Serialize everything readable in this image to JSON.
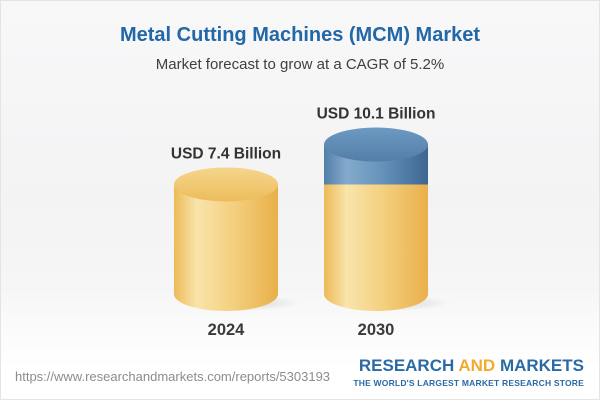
{
  "page": {
    "title": "Metal Cutting Machines (MCM) Market",
    "subtitle": "Market forecast to grow at a CAGR of 5.2%",
    "title_color": "#2268a8",
    "subtitle_color": "#3f3f3f"
  },
  "chart_data": {
    "type": "bar",
    "variant": "3d-cylinder",
    "title": "Metal Cutting Machines (MCM) Market",
    "subtitle": "Market forecast to grow at a CAGR of 5.2%",
    "cagr_percent": 5.2,
    "unit": "USD Billion",
    "categories": [
      "2024",
      "2030"
    ],
    "values": [
      7.4,
      10.1
    ],
    "value_labels": [
      "USD 7.4 Billion",
      "USD 10.1 Billion"
    ],
    "series": [
      {
        "name": "base-market",
        "color_key": "yellow",
        "values": [
          7.4,
          7.4
        ]
      },
      {
        "name": "growth",
        "color_key": "blue",
        "values": [
          0,
          2.7
        ]
      }
    ],
    "colors": {
      "yellow": "#F0C367",
      "blue": "#5B89B4"
    },
    "legend": "none",
    "grid": "off",
    "bars": [
      {
        "category": "2024",
        "label": "USD 7.4 Billion",
        "total": 7.4,
        "segments": [
          {
            "value": 7.4,
            "color": "yellow"
          }
        ]
      },
      {
        "category": "2030",
        "label": "USD 10.1 Billion",
        "total": 10.1,
        "segments": [
          {
            "value": 7.4,
            "color": "yellow"
          },
          {
            "value": 2.7,
            "color": "blue"
          }
        ]
      }
    ]
  },
  "footer": {
    "url": "https://www.researchandmarkets.com/reports/5303193",
    "logo": {
      "part1": "RESEARCH",
      "part2": "AND",
      "part3": "MARKETS",
      "tagline": "THE WORLD'S LARGEST MARKET RESEARCH STORE",
      "blue": "#2a6aa5",
      "gold": "#efac2e"
    }
  }
}
